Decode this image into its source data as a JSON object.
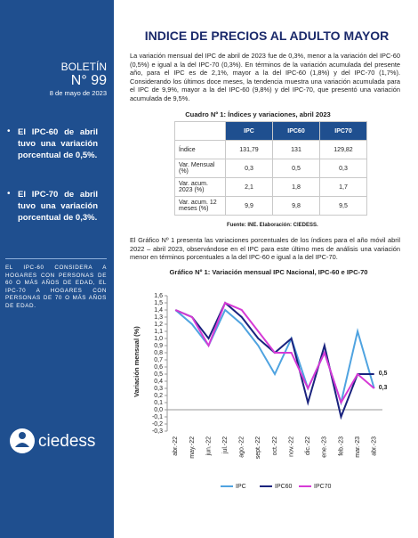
{
  "sidebar": {
    "bulletin_label": "BOLETÍN",
    "number": "N° 99",
    "date": "8 de mayo de 2023",
    "bullets": [
      "El IPC-60 de abril tuvo una variación porcentual de 0,5%.",
      "El IPC-70 de abril tuvo una variación porcentual de 0,3%."
    ],
    "note": "EL IPC-60 CONSIDERA A HOGARES CON PERSONAS DE 60 O MÁS AÑOS DE EDAD, EL IPC-70 A HOGARES CON PERSONAS DE 70 O MÁS AÑOS DE EDAD.",
    "logo_text": "ciedess"
  },
  "header": {
    "title": "INDICE DE PRECIOS AL ADULTO MAYOR"
  },
  "intro": "La variación mensual del IPC de abril de 2023 fue de 0,3%, menor a la variación del IPC-60 (0,5%) e igual a la del IPC-70 (0,3%). En términos de la variación acumulada del presente año, para el IPC es de 2,1%, mayor a la del IPC-60 (1,8%) y del IPC-70 (1,7%). Considerando los últimos doce meses, la tendencia muestra una variación acumulada para el IPC de 9,9%, mayor a la del IPC-60 (9,8%) y del IPC-70, que presentó una variación acumulada de 9,5%.",
  "table": {
    "caption": "Cuadro Nº 1: Índices y variaciones, abril 2023",
    "columns": [
      "IPC",
      "IPC60",
      "IPC70"
    ],
    "rows": [
      [
        "Índice",
        "131,79",
        "131",
        "129,82"
      ],
      [
        "Var. Mensual (%)",
        "0,3",
        "0,5",
        "0,3"
      ],
      [
        "Var. acum. 2023 (%)",
        "2,1",
        "1,8",
        "1,7"
      ],
      [
        "Var. acum. 12 meses (%)",
        "9,9",
        "9,8",
        "9,5"
      ]
    ],
    "source": "Fuente: INE. Elaboración: CIEDESS."
  },
  "paragraph2": "El Gráfico Nº 1 presenta las variaciones porcentuales de los índices para el año móvil abril 2022 – abril 2023, observándose en el IPC para este último mes de análisis una variación menor en términos porcentuales a la del IPC-60 e igual a la del IPC-70.",
  "chart_data": {
    "type": "line",
    "title": "Gráfico Nº 1: Variación mensual IPC Nacional, IPC-60 e IPC-70",
    "y_label": "Variación mensual (%)",
    "categories": [
      "abr.-22",
      "may.-22",
      "jun.-22",
      "jul.-22",
      "ago.-22",
      "sept.-22",
      "oct.-22",
      "nov.-22",
      "dic.-22",
      "ene.-23",
      "feb.-23",
      "mar.-23",
      "abr.-23"
    ],
    "series": [
      {
        "name": "IPC",
        "color": "#4fa3e0",
        "values": [
          1.4,
          1.2,
          0.9,
          1.4,
          1.2,
          0.9,
          0.5,
          1.0,
          0.3,
          0.8,
          0.1,
          1.1,
          0.3
        ],
        "value_labels": [
          null,
          null,
          null,
          null,
          null,
          null,
          null,
          null,
          null,
          null,
          null,
          null,
          "0,3"
        ]
      },
      {
        "name": "IPC60",
        "color": "#1a237e",
        "values": [
          1.4,
          1.3,
          1.0,
          1.5,
          1.3,
          1.0,
          0.8,
          1.0,
          0.1,
          0.9,
          -0.1,
          0.5,
          0.5
        ],
        "value_labels": [
          null,
          null,
          null,
          null,
          null,
          null,
          null,
          null,
          null,
          null,
          null,
          null,
          "0,5"
        ]
      },
      {
        "name": "IPC70",
        "color": "#d63ad6",
        "values": [
          1.4,
          1.3,
          0.9,
          1.5,
          1.4,
          1.1,
          0.8,
          0.8,
          0.3,
          0.8,
          0.1,
          0.5,
          0.3
        ]
      }
    ],
    "ylim": [
      -0.3,
      1.6
    ],
    "yticks": [
      {
        "value": 1.6,
        "label": "1,6"
      },
      {
        "value": 1.5,
        "label": "1,5"
      },
      {
        "value": 1.4,
        "label": "1,4"
      },
      {
        "value": 1.3,
        "label": "1,3"
      },
      {
        "value": 1.2,
        "label": "1,2"
      },
      {
        "value": 1.1,
        "label": "1,1"
      },
      {
        "value": 1.0,
        "label": "1,0"
      },
      {
        "value": 0.9,
        "label": "0,9"
      },
      {
        "value": 0.8,
        "label": "0,8"
      },
      {
        "value": 0.7,
        "label": "0,7"
      },
      {
        "value": 0.6,
        "label": "0,6"
      },
      {
        "value": 0.5,
        "label": "0,5"
      },
      {
        "value": 0.4,
        "label": "0,4"
      },
      {
        "value": 0.3,
        "label": "0,3"
      },
      {
        "value": 0.2,
        "label": "0,2"
      },
      {
        "value": 0.1,
        "label": "0,1"
      },
      {
        "value": 0,
        "label": "0,0"
      },
      {
        "value": -0.1,
        "label": "-0,1"
      },
      {
        "value": -0.2,
        "label": "-0,2"
      },
      {
        "value": -0.3,
        "label": "-0,3"
      }
    ],
    "grid": false,
    "legend": "bottom"
  }
}
